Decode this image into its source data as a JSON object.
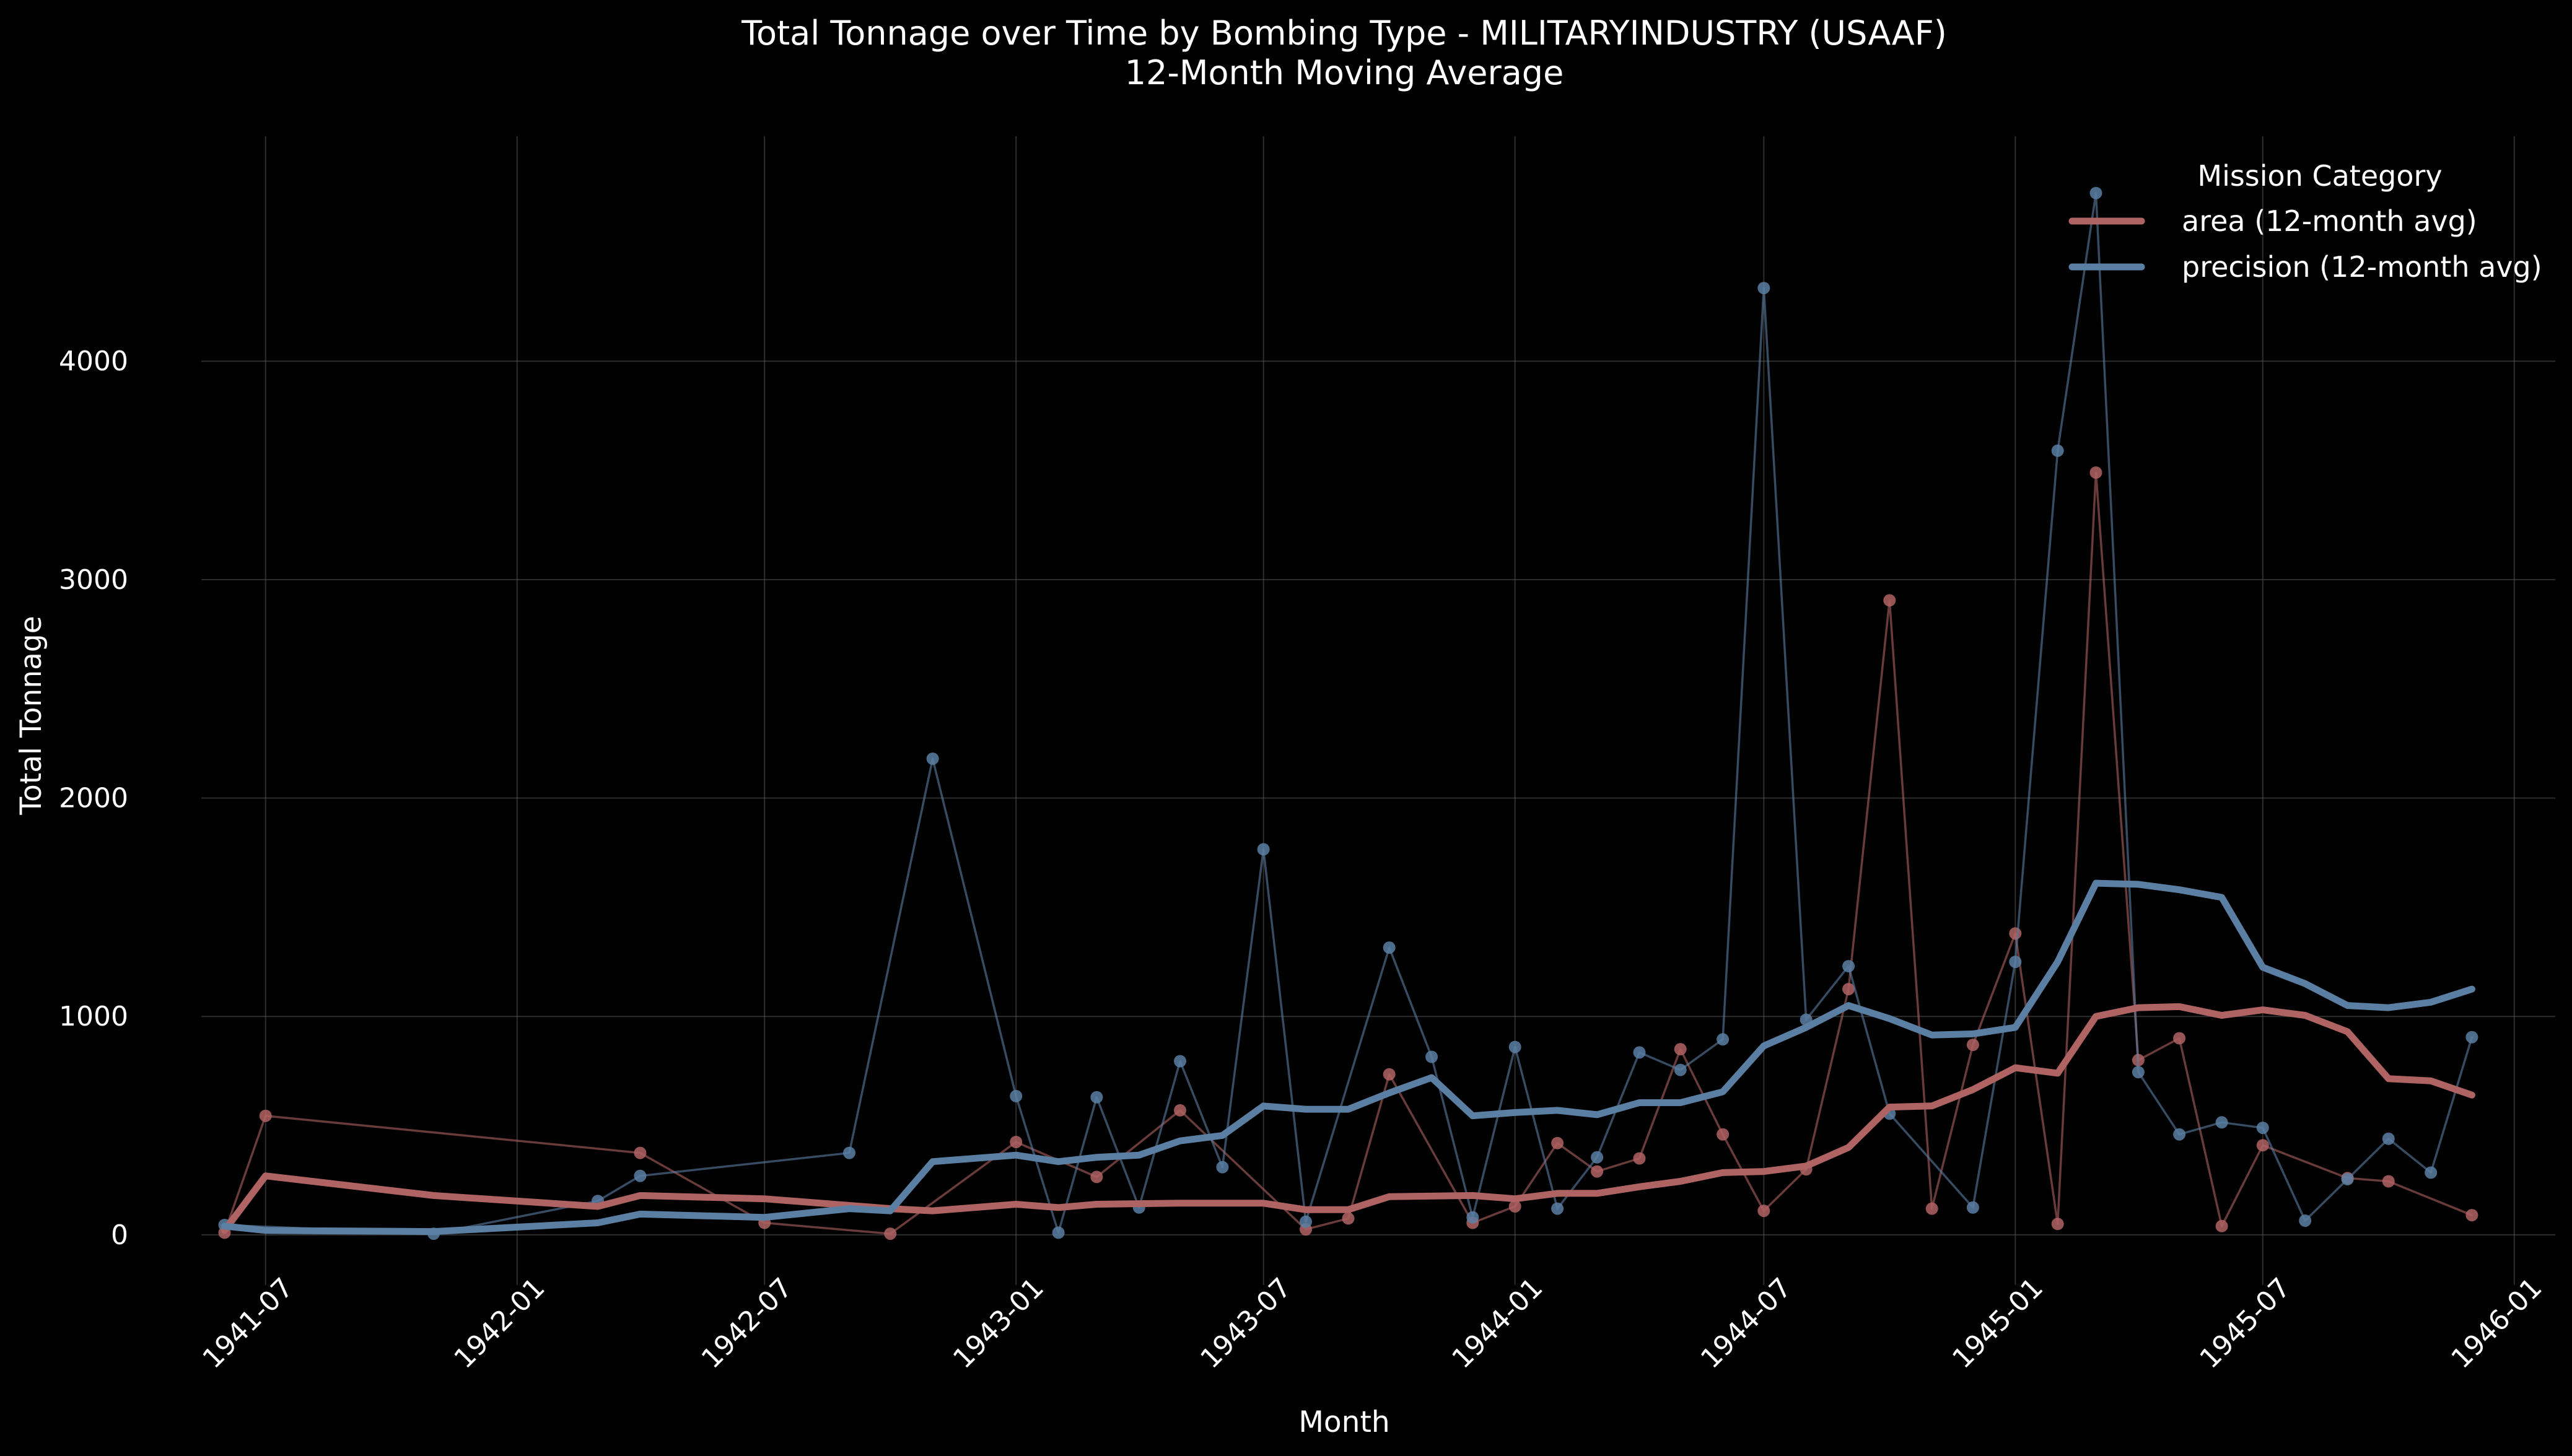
{
  "chart_data": {
    "type": "line",
    "title": "Total Tonnage over Time by Bombing Type - MILITARYINDUSTRY (USAAF)",
    "subtitle": "12-Month Moving Average",
    "xlabel": "Month",
    "ylabel": "Total Tonnage",
    "xlim": [
      "1941-05-15",
      "1946-01-31"
    ],
    "ylim": [
      -230,
      5030
    ],
    "x_ticks": [
      "1941-07",
      "1942-01",
      "1942-07",
      "1943-01",
      "1943-07",
      "1944-01",
      "1944-07",
      "1945-01",
      "1945-07",
      "1946-01"
    ],
    "y_ticks": [
      0,
      1000,
      2000,
      3000,
      4000
    ],
    "grid": true,
    "background": "#000000",
    "legend": {
      "title": "Mission Category",
      "position": "top-right",
      "entries": [
        "area (12-month avg)",
        "precision (12-month avg)"
      ]
    },
    "series": [
      {
        "name": "area (12-month avg)",
        "kind": "moving_average",
        "color": "#b06363",
        "points": [
          [
            "1941-06",
            20
          ],
          [
            "1941-07",
            270
          ],
          [
            "1941-11",
            180
          ],
          [
            "1942-03",
            130
          ],
          [
            "1942-04",
            180
          ],
          [
            "1942-07",
            165
          ],
          [
            "1942-10",
            120
          ],
          [
            "1942-11",
            110
          ],
          [
            "1943-01",
            140
          ],
          [
            "1943-02",
            125
          ],
          [
            "1943-03",
            140
          ],
          [
            "1943-05",
            145
          ],
          [
            "1943-06",
            145
          ],
          [
            "1943-07",
            145
          ],
          [
            "1943-08",
            115
          ],
          [
            "1943-09",
            115
          ],
          [
            "1943-10",
            175
          ],
          [
            "1943-12",
            180
          ],
          [
            "1944-01",
            165
          ],
          [
            "1944-02",
            190
          ],
          [
            "1944-03",
            190
          ],
          [
            "1944-04",
            220
          ],
          [
            "1944-05",
            245
          ],
          [
            "1944-06",
            285
          ],
          [
            "1944-07",
            290
          ],
          [
            "1944-08",
            315
          ],
          [
            "1944-09",
            400
          ],
          [
            "1944-10",
            585
          ],
          [
            "1944-11",
            590
          ],
          [
            "1944-12",
            665
          ],
          [
            "1945-01",
            765
          ],
          [
            "1945-02",
            740
          ],
          [
            "1945-03",
            1000
          ],
          [
            "1945-04",
            1040
          ],
          [
            "1945-05",
            1045
          ],
          [
            "1945-06",
            1005
          ],
          [
            "1945-07",
            1030
          ],
          [
            "1945-08",
            1005
          ],
          [
            "1945-09",
            930
          ],
          [
            "1945-10",
            715
          ],
          [
            "1945-11",
            705
          ],
          [
            "1945-12",
            640
          ]
        ]
      },
      {
        "name": "precision (12-month avg)",
        "kind": "moving_average",
        "color": "#5b7fa3",
        "points": [
          [
            "1941-06",
            40
          ],
          [
            "1941-07",
            20
          ],
          [
            "1941-11",
            15
          ],
          [
            "1942-03",
            55
          ],
          [
            "1942-04",
            95
          ],
          [
            "1942-07",
            80
          ],
          [
            "1942-09",
            120
          ],
          [
            "1942-10",
            110
          ],
          [
            "1942-11",
            335
          ],
          [
            "1943-01",
            365
          ],
          [
            "1943-02",
            335
          ],
          [
            "1943-03",
            355
          ],
          [
            "1943-04",
            365
          ],
          [
            "1943-05",
            430
          ],
          [
            "1943-06",
            455
          ],
          [
            "1943-07",
            590
          ],
          [
            "1943-08",
            575
          ],
          [
            "1943-09",
            575
          ],
          [
            "1943-10",
            650
          ],
          [
            "1943-11",
            720
          ],
          [
            "1943-12",
            545
          ],
          [
            "1944-01",
            560
          ],
          [
            "1944-02",
            570
          ],
          [
            "1944-03",
            550
          ],
          [
            "1944-04",
            605
          ],
          [
            "1944-05",
            605
          ],
          [
            "1944-06",
            655
          ],
          [
            "1944-07",
            865
          ],
          [
            "1944-08",
            950
          ],
          [
            "1944-09",
            1050
          ],
          [
            "1944-10",
            990
          ],
          [
            "1944-11",
            915
          ],
          [
            "1944-12",
            920
          ],
          [
            "1945-01",
            950
          ],
          [
            "1945-02",
            1250
          ],
          [
            "1945-03",
            1610
          ],
          [
            "1945-04",
            1605
          ],
          [
            "1945-05",
            1580
          ],
          [
            "1945-06",
            1545
          ],
          [
            "1945-07",
            1225
          ],
          [
            "1945-08",
            1150
          ],
          [
            "1945-09",
            1050
          ],
          [
            "1945-10",
            1040
          ],
          [
            "1945-11",
            1065
          ],
          [
            "1945-12",
            1125
          ]
        ]
      },
      {
        "name": "",
        "kind": "monthly",
        "color": "#b06363",
        "points": [
          [
            "1941-06",
            10
          ],
          [
            "1941-07",
            545
          ],
          [
            "1942-04",
            375
          ],
          [
            "1942-07",
            55
          ],
          [
            "1942-10",
            5
          ],
          [
            "1943-01",
            425
          ],
          [
            "1943-03",
            265
          ],
          [
            "1943-05",
            570
          ],
          [
            "1943-08",
            25
          ],
          [
            "1943-09",
            75
          ],
          [
            "1943-10",
            735
          ],
          [
            "1943-12",
            55
          ],
          [
            "1944-01",
            130
          ],
          [
            "1944-02",
            420
          ],
          [
            "1944-03",
            290
          ],
          [
            "1944-04",
            350
          ],
          [
            "1944-05",
            850
          ],
          [
            "1944-06",
            460
          ],
          [
            "1944-07",
            110
          ],
          [
            "1944-08",
            300
          ],
          [
            "1944-09",
            1125
          ],
          [
            "1944-10",
            2905
          ],
          [
            "1944-11",
            120
          ],
          [
            "1944-12",
            870
          ],
          [
            "1945-01",
            1380
          ],
          [
            "1945-02",
            50
          ],
          [
            "1945-03",
            3490
          ],
          [
            "1945-04",
            800
          ],
          [
            "1945-05",
            900
          ],
          [
            "1945-06",
            40
          ],
          [
            "1945-07",
            410
          ],
          [
            "1945-09",
            260
          ],
          [
            "1945-10",
            245
          ],
          [
            "1945-12",
            90
          ]
        ]
      },
      {
        "name": "",
        "kind": "monthly",
        "color": "#5b7fa3",
        "points": [
          [
            "1941-06",
            45
          ],
          [
            "1941-11",
            5
          ],
          [
            "1942-03",
            155
          ],
          [
            "1942-04",
            270
          ],
          [
            "1942-09",
            375
          ],
          [
            "1942-11",
            2180
          ],
          [
            "1943-01",
            635
          ],
          [
            "1943-02",
            10
          ],
          [
            "1943-03",
            630
          ],
          [
            "1943-04",
            125
          ],
          [
            "1943-05",
            795
          ],
          [
            "1943-06",
            310
          ],
          [
            "1943-07",
            1765
          ],
          [
            "1943-08",
            60
          ],
          [
            "1943-10",
            1315
          ],
          [
            "1943-11",
            815
          ],
          [
            "1943-12",
            80
          ],
          [
            "1944-01",
            860
          ],
          [
            "1944-02",
            120
          ],
          [
            "1944-03",
            355
          ],
          [
            "1944-04",
            835
          ],
          [
            "1944-05",
            755
          ],
          [
            "1944-06",
            895
          ],
          [
            "1944-07",
            4335
          ],
          [
            "1944-08",
            985
          ],
          [
            "1944-09",
            1230
          ],
          [
            "1944-10",
            555
          ],
          [
            "1944-12",
            125
          ],
          [
            "1945-01",
            1250
          ],
          [
            "1945-02",
            3590
          ],
          [
            "1945-03",
            4770
          ],
          [
            "1945-04",
            745
          ],
          [
            "1945-05",
            460
          ],
          [
            "1945-06",
            515
          ],
          [
            "1945-07",
            490
          ],
          [
            "1945-08",
            65
          ],
          [
            "1945-09",
            255
          ],
          [
            "1945-10",
            440
          ],
          [
            "1945-11",
            285
          ],
          [
            "1945-12",
            905
          ]
        ]
      }
    ]
  }
}
